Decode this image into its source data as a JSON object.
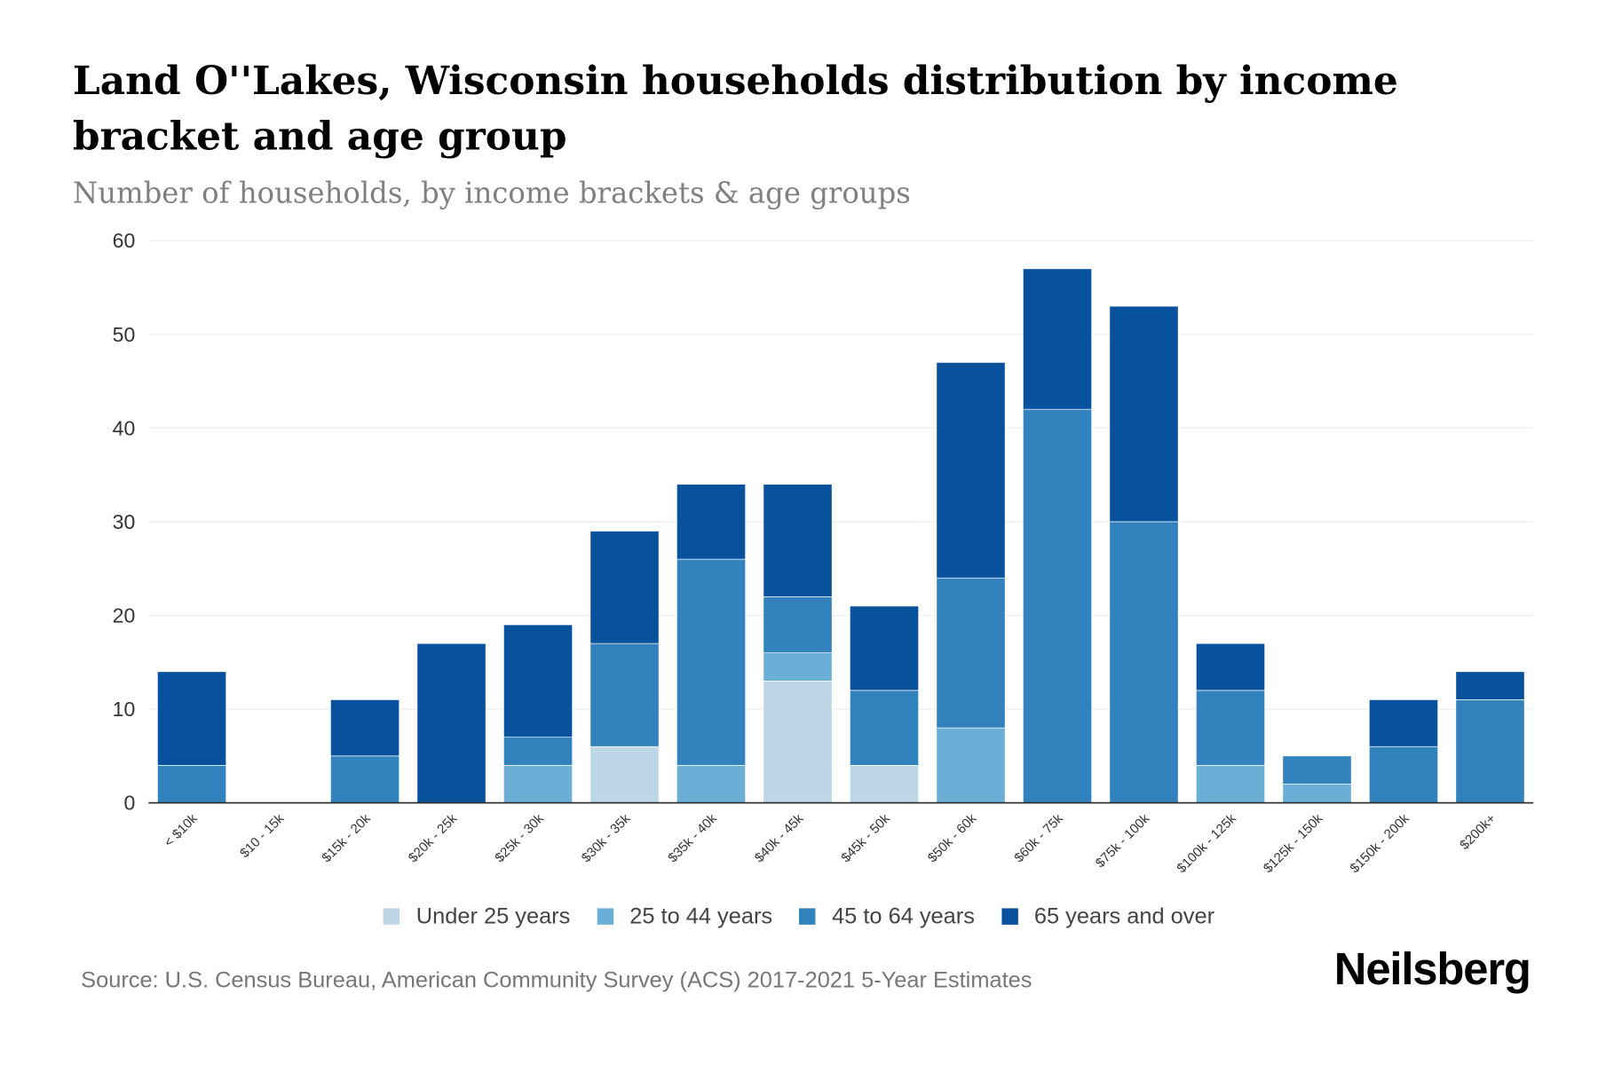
{
  "title": "Land O''Lakes, Wisconsin households distribution by income bracket and age group",
  "subtitle": "Number of households, by income brackets & age groups",
  "source": "Source: U.S. Census Bureau, American Community Survey (ACS) 2017-2021 5-Year Estimates",
  "brand": "Neilsberg",
  "chart_data": {
    "type": "bar",
    "stacked": true,
    "title": "Land O''Lakes, Wisconsin households distribution by income bracket and age group",
    "xlabel": "",
    "ylabel": "Number of households",
    "ylim": [
      0,
      60
    ],
    "yticks": [
      0,
      10,
      20,
      30,
      40,
      50,
      60
    ],
    "grid": true,
    "legend_position": "bottom",
    "categories": [
      "< $10k",
      "$10 - 15k",
      "$15k - 20k",
      "$20k - 25k",
      "$25k - 30k",
      "$30k - 35k",
      "$35k - 40k",
      "$40k - 45k",
      "$45k - 50k",
      "$50k - 60k",
      "$60k - 75k",
      "$75k - 100k",
      "$100k - 125k",
      "$125k - 150k",
      "$150k - 200k",
      "$200k+"
    ],
    "series": [
      {
        "name": "Under 25 years",
        "color": "#bdd7e7",
        "values": [
          0,
          0,
          0,
          0,
          0,
          6,
          0,
          13,
          4,
          0,
          0,
          0,
          0,
          0,
          0,
          0
        ]
      },
      {
        "name": "25 to 44 years",
        "color": "#6baed6",
        "values": [
          0,
          0,
          0,
          0,
          4,
          0,
          4,
          3,
          0,
          8,
          0,
          0,
          4,
          2,
          0,
          0
        ]
      },
      {
        "name": "45 to 64 years",
        "color": "#3182bd",
        "values": [
          4,
          0,
          5,
          0,
          3,
          11,
          22,
          6,
          8,
          16,
          42,
          30,
          8,
          3,
          6,
          11
        ]
      },
      {
        "name": "65 years and over",
        "color": "#08519c",
        "values": [
          10,
          0,
          6,
          17,
          12,
          12,
          8,
          12,
          9,
          23,
          15,
          23,
          5,
          0,
          5,
          3
        ]
      }
    ]
  }
}
